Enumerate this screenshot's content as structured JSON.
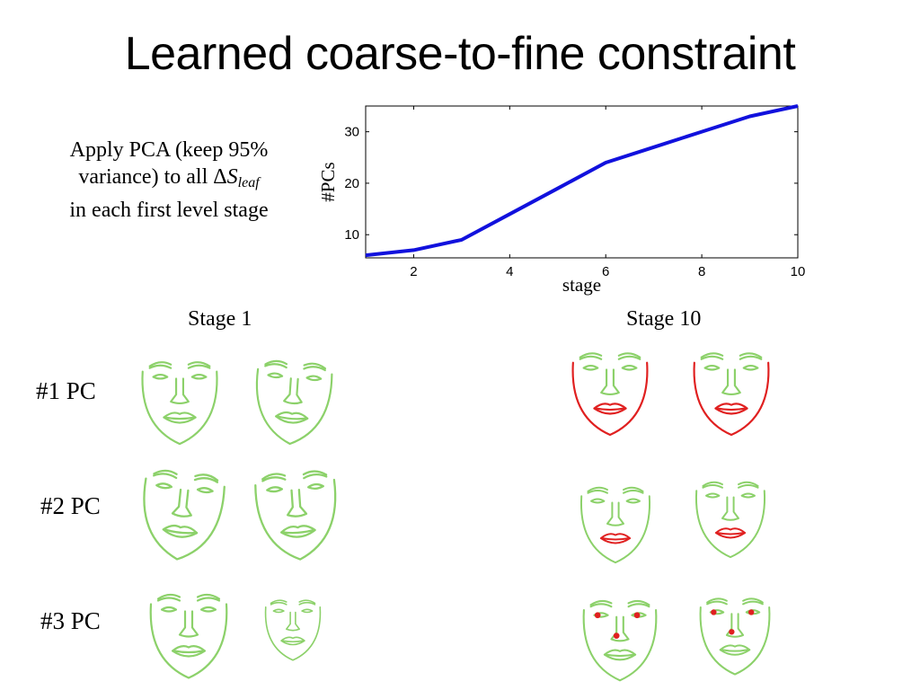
{
  "slide": {
    "title": "Learned coarse-to-fine constraint",
    "description": {
      "line1": "Apply PCA (keep 95%",
      "line2_prefix": "variance) to all ",
      "delta": "Δ",
      "symbol": "S",
      "subscript": "leaf",
      "line3": "in each first level stage"
    },
    "stage_labels": [
      "Stage 1",
      "Stage 10"
    ],
    "pc_labels": [
      "#1 PC",
      "#2 PC",
      "#3 PC"
    ]
  },
  "colors": {
    "face_green": "#8cd16a",
    "highlight_red": "#e02020",
    "line_blue": "#1111dd"
  },
  "chart_data": {
    "type": "line",
    "xlabel": "stage",
    "ylabel": "#PCs",
    "xlim": [
      1,
      10
    ],
    "ylim": [
      5.5,
      35
    ],
    "xticks": [
      2,
      4,
      6,
      8,
      10
    ],
    "yticks": [
      10,
      20,
      30
    ],
    "grid": false,
    "series": [
      {
        "x": [
          1,
          2,
          3,
          4,
          5,
          6,
          7,
          8,
          9,
          10
        ],
        "values": [
          6,
          7,
          9,
          14,
          19,
          24,
          27,
          30,
          33,
          35
        ]
      }
    ]
  },
  "faces": {
    "icon_names": [
      "face-outline-icon"
    ],
    "grid": [
      [
        {
          "stage": "Stage 1",
          "highlight": "none"
        },
        {
          "stage": "Stage 1",
          "highlight": "none"
        },
        {
          "stage": "Stage 10",
          "highlight": "jaw-mouth"
        },
        {
          "stage": "Stage 10",
          "highlight": "jaw-mouth"
        }
      ],
      [
        {
          "stage": "Stage 1",
          "highlight": "none"
        },
        {
          "stage": "Stage 1",
          "highlight": "none"
        },
        {
          "stage": "Stage 10",
          "highlight": "mouth"
        },
        {
          "stage": "Stage 10",
          "highlight": "mouth"
        }
      ],
      [
        {
          "stage": "Stage 1",
          "highlight": "none"
        },
        {
          "stage": "Stage 1",
          "highlight": "none"
        },
        {
          "stage": "Stage 10",
          "highlight": "eye-nose-points"
        },
        {
          "stage": "Stage 10",
          "highlight": "eye-nose-points"
        }
      ]
    ]
  }
}
